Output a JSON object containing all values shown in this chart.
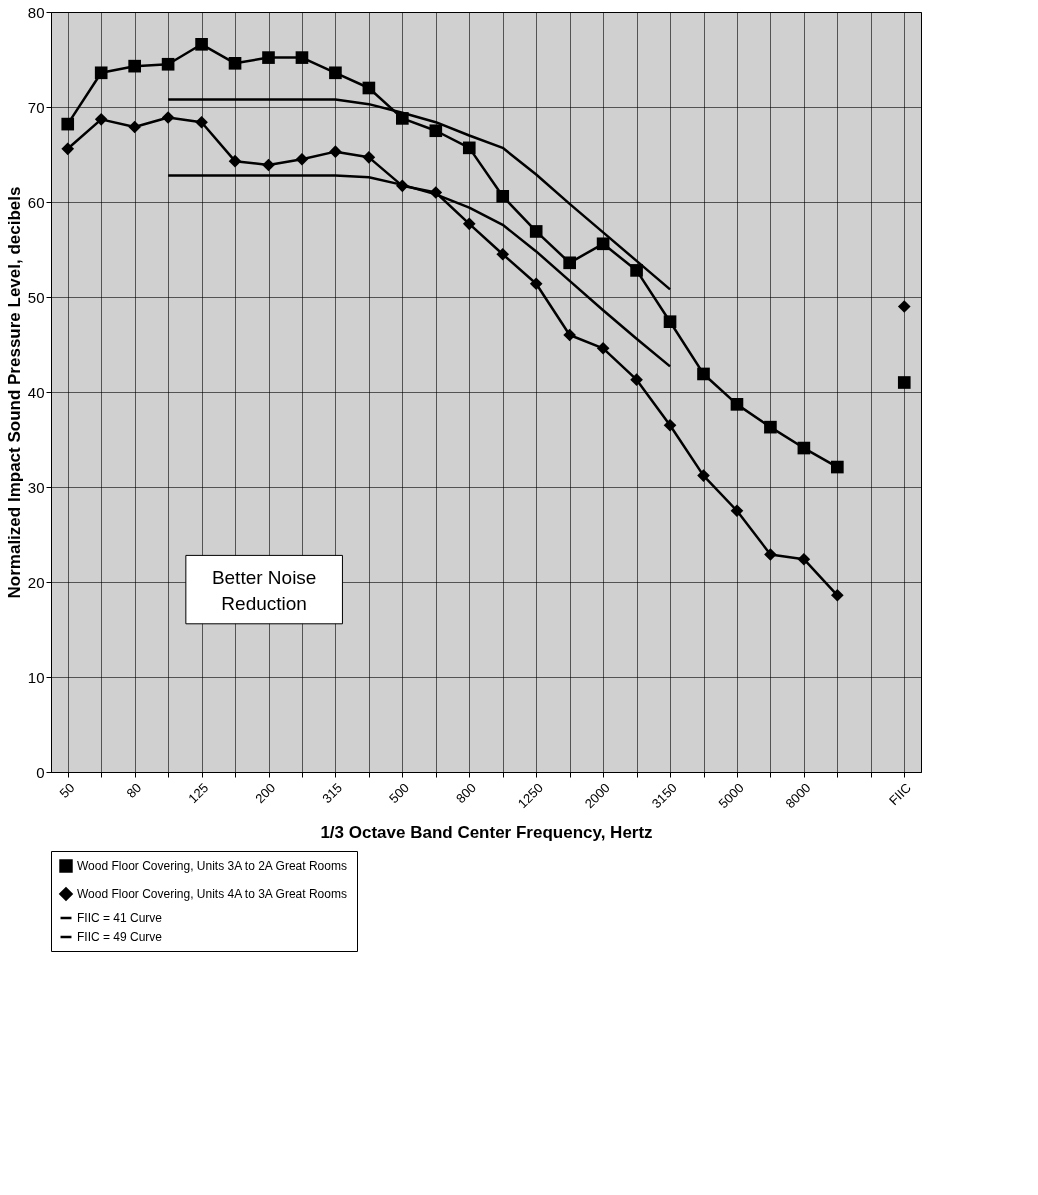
{
  "chart_data": {
    "type": "line",
    "xlabel": "1/3 Octave Band Center Frequency, Hertz",
    "ylabel": "Normalized Impact Sound Pressure Level, decibels",
    "categories": [
      "50",
      null,
      "80",
      null,
      "125",
      null,
      "200",
      null,
      "315",
      null,
      "500",
      null,
      "800",
      null,
      "1250",
      null,
      "2000",
      null,
      "3150",
      null,
      "5000",
      null,
      "8000",
      null,
      null,
      "FIIC"
    ],
    "series": [
      {
        "name": "Wood Floor Covering, Units 3A to 2A Great Rooms",
        "color": "#000000",
        "marker": "square",
        "values": [
          68.2,
          73.6,
          74.3,
          74.5,
          76.6,
          74.6,
          75.2,
          75.2,
          73.6,
          72.0,
          68.8,
          67.5,
          65.7,
          60.6,
          56.9,
          53.6,
          55.6,
          52.8,
          47.4,
          41.9,
          38.7,
          36.3,
          34.1,
          32.1,
          null,
          41
        ]
      },
      {
        "name": "Wood Floor Covering, Units 4A to 3A Great Rooms",
        "color": "#000000",
        "marker": "diamond",
        "values": [
          65.6,
          68.7,
          67.9,
          68.9,
          68.4,
          64.3,
          63.9,
          64.5,
          65.3,
          64.7,
          61.7,
          61.0,
          57.7,
          54.5,
          51.4,
          46.0,
          44.6,
          41.3,
          36.5,
          31.2,
          27.5,
          22.9,
          22.4,
          18.6,
          null,
          49
        ]
      },
      {
        "name": "FIIC = 41 Curve",
        "color": "#000000",
        "marker": "none",
        "values": [
          null,
          null,
          null,
          70.8,
          70.8,
          70.8,
          70.8,
          70.8,
          70.8,
          70.3,
          69.4,
          68.4,
          67.0,
          65.7,
          62.9,
          59.8,
          56.8,
          53.8,
          50.8,
          null,
          null,
          null,
          null,
          null,
          null,
          null
        ]
      },
      {
        "name": "FIIC = 49 Curve",
        "color": "#000000",
        "marker": "none",
        "values": [
          null,
          null,
          null,
          62.8,
          62.8,
          62.8,
          62.8,
          62.8,
          62.8,
          62.6,
          61.8,
          60.8,
          59.4,
          57.6,
          54.8,
          51.7,
          48.6,
          45.6,
          42.7,
          null,
          null,
          null,
          null,
          null,
          null,
          null
        ]
      }
    ],
    "ylim": [
      0,
      80
    ],
    "yticks": [
      0,
      10,
      20,
      30,
      40,
      50,
      60,
      70,
      80
    ],
    "grid": true,
    "legend": "bottom",
    "annotations": [
      "Better Noise Reduction"
    ]
  }
}
